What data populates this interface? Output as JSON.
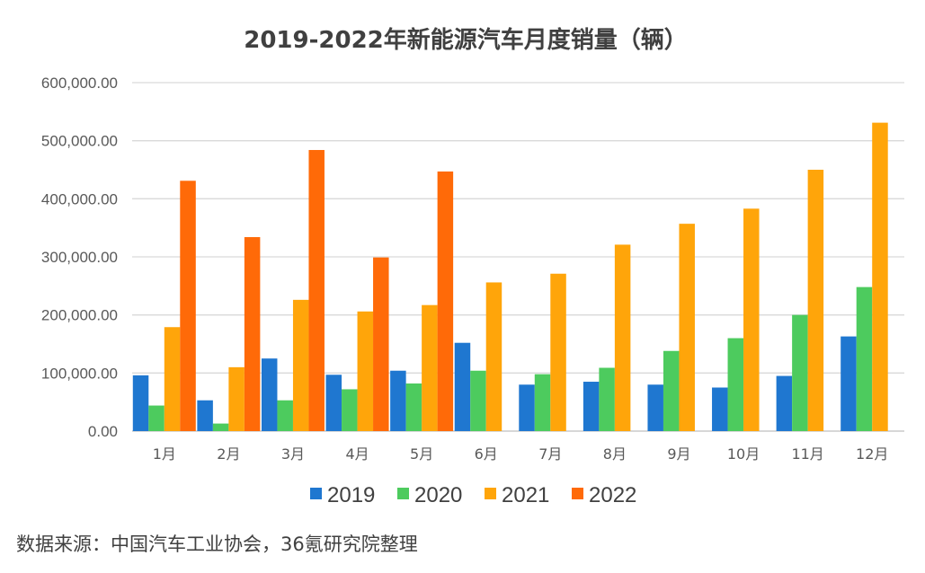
{
  "chart_data": {
    "type": "bar",
    "title": "2019-2022年新能源汽车月度销量（辆）",
    "categories": [
      "1月",
      "2月",
      "3月",
      "4月",
      "5月",
      "6月",
      "7月",
      "8月",
      "9月",
      "10月",
      "11月",
      "12月"
    ],
    "series": [
      {
        "name": "2019",
        "color": "#1F77D0",
        "values": [
          96000,
          53000,
          125000,
          97000,
          104000,
          152000,
          80000,
          85000,
          80000,
          75000,
          95000,
          163000
        ]
      },
      {
        "name": "2020",
        "color": "#4DCB5E",
        "values": [
          44000,
          13000,
          53000,
          72000,
          82000,
          104000,
          98000,
          109000,
          138000,
          160000,
          200000,
          248000
        ]
      },
      {
        "name": "2021",
        "color": "#FFA50A",
        "values": [
          179000,
          110000,
          226000,
          206000,
          217000,
          256000,
          271000,
          321000,
          357000,
          383000,
          450000,
          531000
        ]
      },
      {
        "name": "2022",
        "color": "#FF6A08",
        "values": [
          431000,
          334000,
          484000,
          299000,
          447000,
          null,
          null,
          null,
          null,
          null,
          null,
          null
        ]
      }
    ],
    "yticks": [
      "0.00",
      "100,000.00",
      "200,000.00",
      "300,000.00",
      "400,000.00",
      "500,000.00",
      "600,000.00"
    ],
    "ylim": [
      0,
      600000
    ],
    "xlabel": "",
    "ylabel": "",
    "legend": "bottom",
    "grid": true
  },
  "source_note": "数据来源：中国汽车工业协会，36氪研究院整理"
}
